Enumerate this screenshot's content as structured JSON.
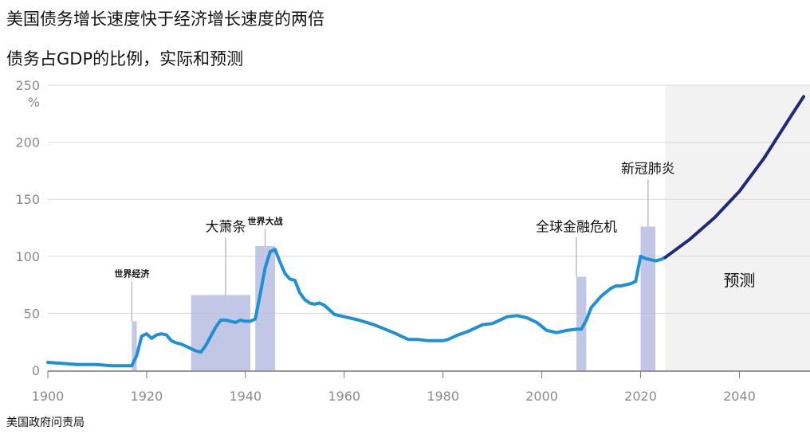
{
  "title": "美国债务增长速度快于经济增长速度的两倍",
  "subtitle": "债务占GDP的比例，实际和预测",
  "source": "美国政府问责局",
  "colors": {
    "actual": "#1f8fd6",
    "forecast": "#1f2a7a",
    "shade": "#b7bde0",
    "forecast_bg": "#f2f2f2",
    "grid": "#d9d9d9"
  },
  "chart_data": {
    "type": "line",
    "ylabel": "%",
    "ylim": [
      0,
      250
    ],
    "xlim": [
      1900,
      2053
    ],
    "yticks": [
      0,
      50,
      100,
      150,
      200,
      250
    ],
    "xticks": [
      1900,
      1920,
      1940,
      1960,
      1980,
      2000,
      2020,
      2040
    ],
    "grid": true,
    "series": [
      {
        "style": "actual",
        "x": [
          1900,
          1903,
          1906,
          1910,
          1913,
          1916,
          1917,
          1918,
          1919,
          1920,
          1921,
          1922,
          1923,
          1924,
          1925,
          1926,
          1927,
          1928,
          1929,
          1930,
          1931,
          1932,
          1933,
          1934,
          1935,
          1936,
          1937,
          1938,
          1939,
          1940,
          1941,
          1942,
          1943,
          1944,
          1945,
          1946,
          1947,
          1948,
          1949,
          1950,
          1951,
          1952,
          1953,
          1954,
          1955,
          1956,
          1957,
          1958,
          1960,
          1963,
          1966,
          1970,
          1973,
          1975,
          1977,
          1980,
          1981,
          1983,
          1985,
          1988,
          1990,
          1993,
          1995,
          1997,
          1999,
          2001,
          2003,
          2005,
          2007,
          2008,
          2009,
          2010,
          2012,
          2014,
          2015,
          2016,
          2018,
          2019,
          2020,
          2021,
          2022,
          2023,
          2024,
          2025
        ],
        "y": [
          7,
          6,
          5,
          5,
          4,
          4,
          4,
          13,
          30,
          32,
          28,
          31,
          32,
          31,
          26,
          24,
          23,
          21,
          19,
          17,
          16,
          22,
          30,
          38,
          44,
          44,
          43,
          42,
          44,
          43,
          43,
          45,
          67,
          90,
          104,
          106,
          95,
          85,
          80,
          79,
          68,
          62,
          59,
          58,
          59,
          57,
          53,
          49,
          47,
          44,
          40,
          33,
          27,
          27,
          26,
          26,
          27,
          31,
          34,
          40,
          41,
          47,
          48,
          46,
          42,
          35,
          33,
          35,
          36,
          36,
          44,
          55,
          65,
          72,
          74,
          74,
          76,
          78,
          100,
          98,
          97,
          96,
          97,
          99
        ]
      },
      {
        "style": "forecast",
        "x": [
          2025,
          2030,
          2035,
          2040,
          2045,
          2050,
          2053
        ],
        "y": [
          99,
          115,
          134,
          157,
          186,
          220,
          240
        ]
      }
    ],
    "shaded_periods": [
      {
        "start": 1917,
        "end": 1918,
        "top": 43,
        "label": "世界经济",
        "label_x": 1917,
        "label_y": 82,
        "label_size": "small"
      },
      {
        "start": 1929,
        "end": 1941,
        "top": 66,
        "label": "大萧条",
        "label_x": 1936,
        "label_y": 122,
        "label_size": "big"
      },
      {
        "start": 1942,
        "end": 1946,
        "top": 109,
        "label": "世界大战",
        "label_x": 1944,
        "label_y": 128,
        "label_size": "small"
      },
      {
        "start": 2007,
        "end": 2009,
        "top": 82,
        "label": "全球金融危机",
        "label_x": 2007,
        "label_y": 122,
        "label_size": "big"
      },
      {
        "start": 2020,
        "end": 2023,
        "top": 126,
        "label": "新冠肺炎",
        "label_x": 2021.5,
        "label_y": 173,
        "label_size": "big"
      }
    ],
    "forecast_region": {
      "start": 2025,
      "label": "预测",
      "label_x": 2040,
      "label_y": 74
    }
  }
}
